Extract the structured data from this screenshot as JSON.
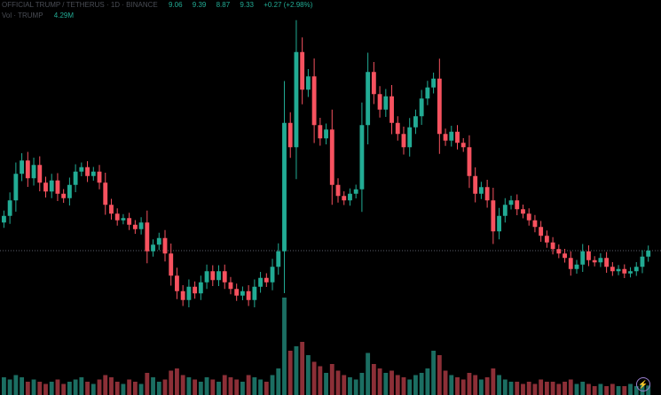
{
  "header": {
    "symbol_line": "OFFICIAL TRUMP / TETHERUS · 1D · BINANCE",
    "open": "9.06",
    "high": "9.39",
    "low": "8.87",
    "close": "9.33",
    "change": "+0.27 (+2.98%)",
    "volume_label": "Vol · TRUMP",
    "volume_value": "4.29M"
  },
  "colors": {
    "up": "#22ab94",
    "down": "#f7525f",
    "up_volume": "#1b6e62",
    "down_volume": "#8c2f37",
    "background": "#000000",
    "last_price_line": "#5d606b"
  },
  "logo_icon": "lightning-icon",
  "chart_data": {
    "type": "candlestick",
    "title": "",
    "grid": false,
    "last_price": 9.33,
    "ylim": [
      2.81,
      20.65
    ],
    "close": [
      10.9,
      11.6,
      12.8,
      13.4,
      12.6,
      13.2,
      12.4,
      12.0,
      12.5,
      11.9,
      11.7,
      12.3,
      12.9,
      13.1,
      12.7,
      12.9,
      12.4,
      11.4,
      11.0,
      10.7,
      10.8,
      10.5,
      10.3,
      10.6,
      9.3,
      9.6,
      9.9,
      9.2,
      8.2,
      7.5,
      7.1,
      7.7,
      7.4,
      7.9,
      8.4,
      8.0,
      8.4,
      7.9,
      7.6,
      7.3,
      7.5,
      7.1,
      7.7,
      8.1,
      7.9,
      8.6,
      9.3,
      15.1,
      14.0,
      18.3,
      16.6,
      17.2,
      15.0,
      14.4,
      14.8,
      12.3,
      11.8,
      11.6,
      11.9,
      12.1,
      15.0,
      17.4,
      16.4,
      15.7,
      16.3,
      15.1,
      14.6,
      14.0,
      14.9,
      15.4,
      16.2,
      16.7,
      17.1,
      14.6,
      14.3,
      14.7,
      14.2,
      14.0,
      12.7,
      11.9,
      12.2,
      11.6,
      10.2,
      10.9,
      11.4,
      11.6,
      11.2,
      11.0,
      10.7,
      10.4,
      10.0,
      9.7,
      9.4,
      9.2,
      9.0,
      8.5,
      8.7,
      9.3,
      8.9,
      8.8,
      9.0,
      8.6,
      8.4,
      8.5,
      8.3,
      8.4,
      8.6,
      9.06,
      9.33
    ],
    "open": [
      10.6,
      10.9,
      11.6,
      12.8,
      13.4,
      12.6,
      13.2,
      12.4,
      12.0,
      12.5,
      11.9,
      11.7,
      12.3,
      12.9,
      13.1,
      12.7,
      12.9,
      12.4,
      11.4,
      11.0,
      10.7,
      10.8,
      10.5,
      10.3,
      10.6,
      9.3,
      9.6,
      9.9,
      9.2,
      8.2,
      7.5,
      7.1,
      7.7,
      7.4,
      7.9,
      8.4,
      8.0,
      8.4,
      7.9,
      7.6,
      7.3,
      7.5,
      7.1,
      7.7,
      8.1,
      7.9,
      8.6,
      9.3,
      15.1,
      14.0,
      18.3,
      16.6,
      17.2,
      15.0,
      14.4,
      14.8,
      12.3,
      11.8,
      11.6,
      11.9,
      12.1,
      15.0,
      17.4,
      16.4,
      15.7,
      16.3,
      15.1,
      14.6,
      14.0,
      14.9,
      15.4,
      16.2,
      16.7,
      17.1,
      14.6,
      14.3,
      14.7,
      14.2,
      14.0,
      12.7,
      11.9,
      12.2,
      11.6,
      10.2,
      10.9,
      11.4,
      11.6,
      11.2,
      11.0,
      10.7,
      10.4,
      10.0,
      9.7,
      9.4,
      9.2,
      9.0,
      8.5,
      8.7,
      9.3,
      8.9,
      8.8,
      9.0,
      8.6,
      8.4,
      8.5,
      8.3,
      8.4,
      8.6,
      9.06
    ],
    "volume_millions": [
      8,
      7,
      9,
      8,
      6,
      7,
      6,
      5,
      6,
      7,
      5,
      6,
      7,
      8,
      6,
      5,
      7,
      9,
      8,
      6,
      5,
      7,
      6,
      5,
      10,
      8,
      6,
      7,
      11,
      12,
      9,
      8,
      7,
      6,
      8,
      7,
      6,
      9,
      8,
      7,
      6,
      9,
      8,
      7,
      6,
      9,
      12,
      44,
      20,
      22,
      24,
      18,
      15,
      13,
      10,
      14,
      11,
      9,
      8,
      7,
      10,
      19,
      14,
      12,
      10,
      11,
      9,
      8,
      7,
      9,
      10,
      12,
      20,
      18,
      11,
      9,
      8,
      7,
      10,
      9,
      7,
      8,
      12,
      9,
      7,
      6,
      6,
      5,
      6,
      5,
      7,
      6,
      6,
      5,
      6,
      7,
      5,
      6,
      5,
      4,
      5,
      4,
      5,
      4,
      4,
      5,
      4,
      5,
      4.29
    ]
  }
}
